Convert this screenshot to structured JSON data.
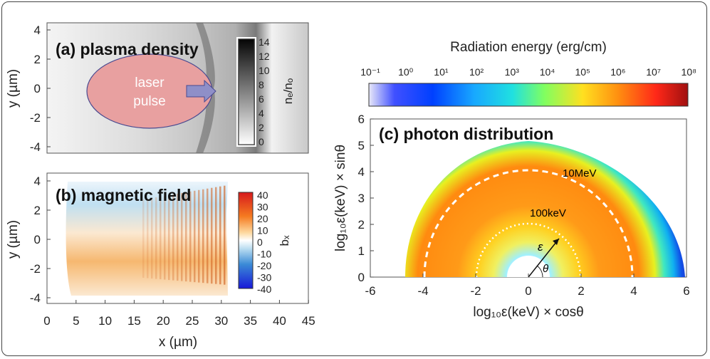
{
  "figure": {
    "panel_a": {
      "title": "(a) plasma density",
      "ellipse_label_line1": "laser",
      "ellipse_label_line2": "pulse",
      "ylabel": "y (µm)",
      "y_ticks": [
        "4",
        "2",
        "0",
        "-2",
        "-4"
      ],
      "colorbar_label": "nₑ/nₒ",
      "colorbar_ticks": [
        "14",
        "12",
        "10",
        "8",
        "6",
        "4",
        "2",
        "0"
      ]
    },
    "panel_b": {
      "title": "(b) magnetic field",
      "ylabel": "y (µm)",
      "y_ticks": [
        "4",
        "2",
        "0",
        "-2",
        "-4"
      ],
      "xlabel": "x (µm)",
      "x_ticks": [
        "0",
        "5",
        "10",
        "15",
        "20",
        "25",
        "30",
        "35",
        "40",
        "45"
      ],
      "colorbar_label": "bₓ",
      "colorbar_ticks": [
        "40",
        "30",
        "20",
        "10",
        "0",
        "-10",
        "-20",
        "-30",
        "-40"
      ]
    },
    "panel_c": {
      "title": "(c) photon distribution",
      "colorbar_title": "Radiation energy (erg/cm)",
      "colorbar_ticks": [
        "10⁻¹",
        "10⁰",
        "10¹",
        "10²",
        "10³",
        "10⁴",
        "10⁵",
        "10⁶",
        "10⁷",
        "10⁸"
      ],
      "x_ticks": [
        "-6",
        "-4",
        "-2",
        "0",
        "2",
        "4",
        "6"
      ],
      "y_ticks": [
        "6",
        "5",
        "4",
        "3",
        "2",
        "1",
        "0"
      ],
      "xlabel": "log₁₀ε(keV) × cosθ",
      "ylabel": "log₁₀ε(keV) × sinθ",
      "label_10MeV": "10MeV",
      "label_100keV": "100keV",
      "label_epsilon": "ε",
      "label_theta": "θ"
    },
    "colors": {
      "ellipse_fill": "#e8a0a0",
      "arrow_fill": "#8f8fc8"
    }
  }
}
